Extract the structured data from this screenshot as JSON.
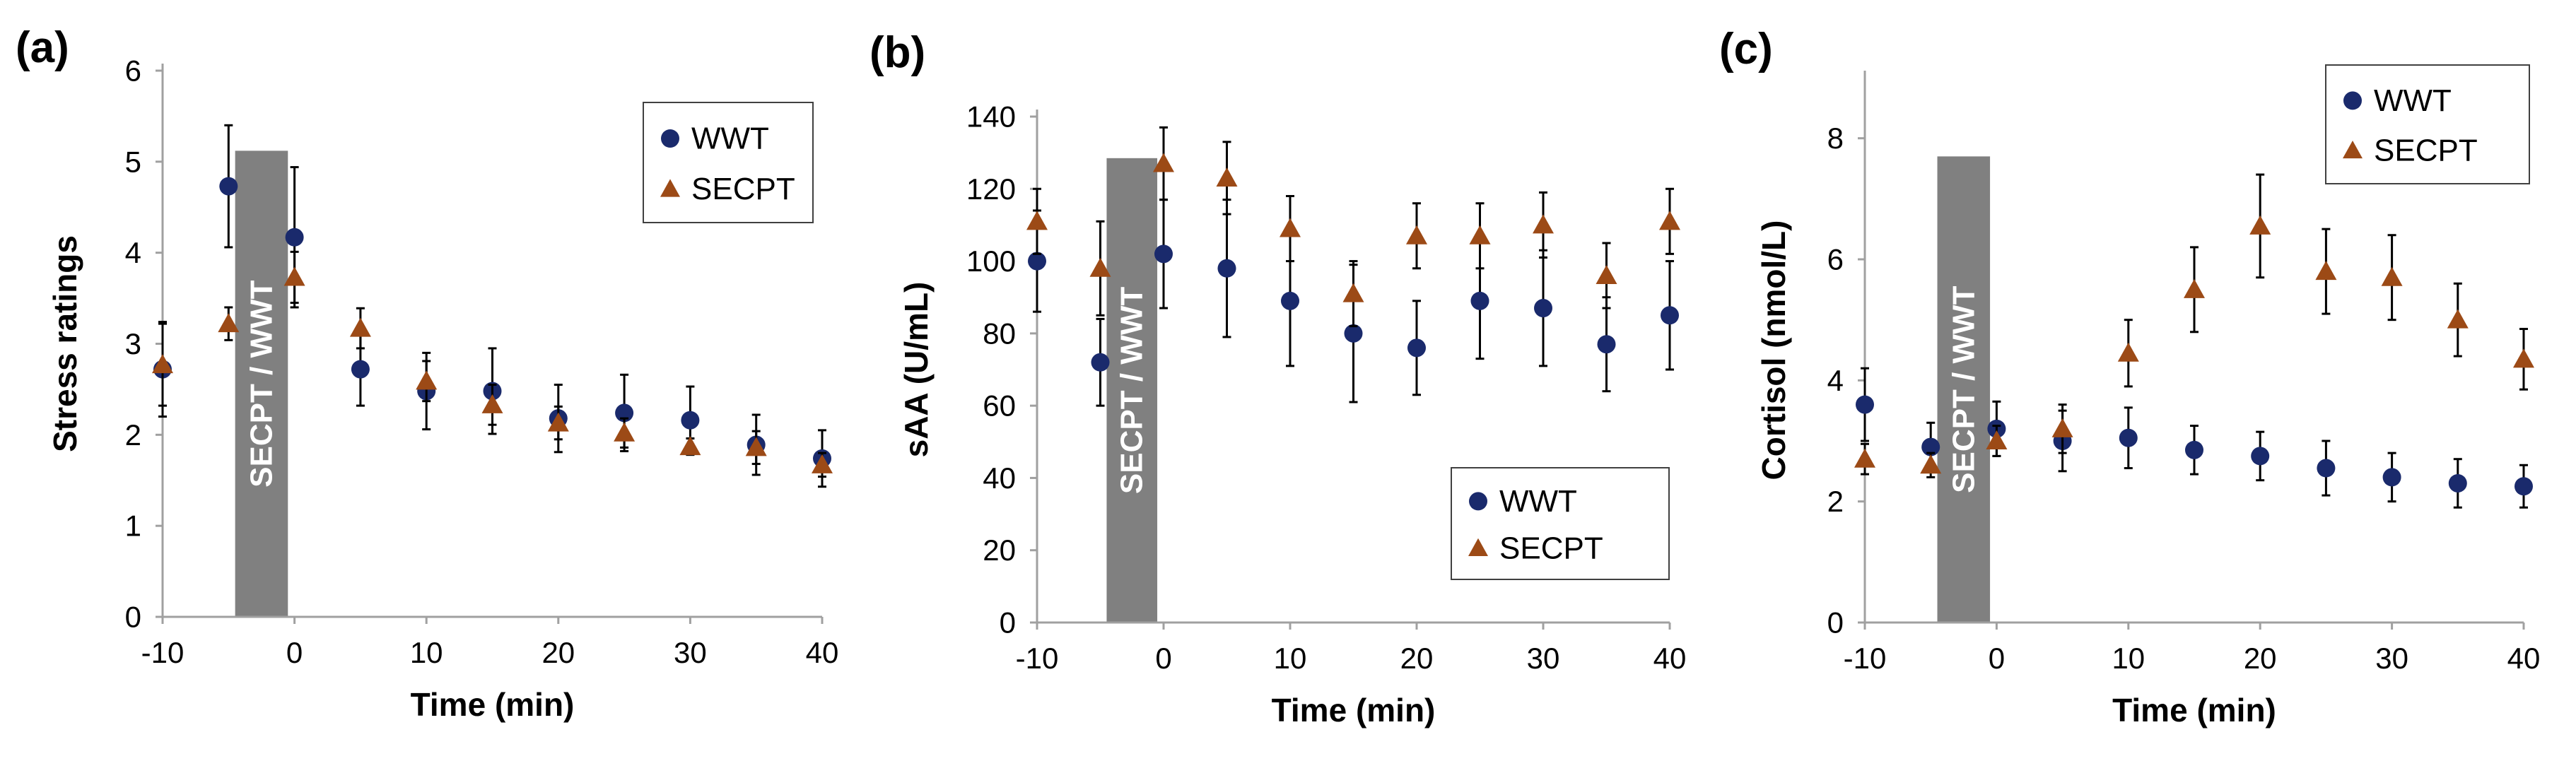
{
  "chart_data": [
    {
      "type": "scatter",
      "panel_label": "(a)",
      "title": "",
      "xlabel": "Time (min)",
      "ylabel": "Stress ratings",
      "xlim": [
        -10,
        40
      ],
      "ylim": [
        0,
        6
      ],
      "x_ticks": [
        -10,
        0,
        10,
        20,
        30,
        40
      ],
      "y_ticks": [
        0,
        1,
        2,
        3,
        4,
        5,
        6
      ],
      "shaded_bar": {
        "label": "SECPT / WWT",
        "x_start": -4.5,
        "x_end": -0.5,
        "y_top": 5.12
      },
      "legend_position": "top-right",
      "series": [
        {
          "name": "WWT",
          "marker": "circle",
          "color": "#1a2a6c",
          "x": [
            -10,
            -5,
            0,
            5,
            10,
            15,
            20,
            25,
            30,
            35,
            40
          ],
          "values": [
            2.72,
            4.73,
            4.17,
            2.72,
            2.48,
            2.48,
            2.18,
            2.24,
            2.16,
            1.89,
            1.74
          ],
          "error": [
            0.52,
            0.67,
            0.77,
            0.4,
            0.42,
            0.47,
            0.37,
            0.42,
            0.37,
            0.33,
            0.31
          ]
        },
        {
          "name": "SECPT",
          "marker": "triangle",
          "color": "#9c4a16",
          "x": [
            -10,
            -5,
            0,
            5,
            10,
            15,
            20,
            25,
            30,
            35,
            40
          ],
          "values": [
            2.77,
            3.22,
            3.73,
            3.17,
            2.59,
            2.33,
            2.13,
            2.02,
            1.87,
            1.86,
            1.67
          ],
          "error": [
            0.45,
            0.18,
            0.28,
            0.22,
            0.22,
            0.22,
            0.18,
            0.16,
            0.09,
            0.18,
            0.13
          ]
        }
      ]
    },
    {
      "type": "scatter",
      "panel_label": "(b)",
      "title": "",
      "xlabel": "Time (min)",
      "ylabel": "sAA (U/mL)",
      "xlim": [
        -10,
        40
      ],
      "ylim": [
        0,
        140
      ],
      "x_ticks": [
        -10,
        0,
        10,
        20,
        30,
        40
      ],
      "y_ticks": [
        0,
        20,
        40,
        60,
        80,
        100,
        120,
        140
      ],
      "shaded_bar": {
        "label": "SECPT / WWT",
        "x_start": -4.5,
        "x_end": -0.5,
        "y_top": 128.5
      },
      "legend_position": "bottom-right",
      "series": [
        {
          "name": "WWT",
          "marker": "circle",
          "color": "#1a2a6c",
          "x": [
            -10,
            -5,
            0,
            5,
            10,
            15,
            20,
            25,
            30,
            35,
            40
          ],
          "values": [
            100,
            72,
            102,
            98,
            89,
            80,
            76,
            89,
            87,
            77,
            85
          ],
          "error": [
            14,
            12,
            15,
            19,
            18,
            19,
            13,
            16,
            16,
            13,
            15
          ]
        },
        {
          "name": "SECPT",
          "marker": "triangle",
          "color": "#9c4a16",
          "x": [
            -10,
            -5,
            0,
            5,
            10,
            15,
            20,
            25,
            30,
            35,
            40
          ],
          "values": [
            111,
            98,
            127,
            123,
            109,
            91,
            107,
            107,
            110,
            96,
            111
          ],
          "error": [
            9,
            13,
            10,
            10,
            9,
            9,
            9,
            9,
            9,
            9,
            9
          ]
        }
      ]
    },
    {
      "type": "scatter",
      "panel_label": "(c)",
      "title": "",
      "xlabel": "Time (min)",
      "ylabel": "Cortisol (nmol/L)",
      "xlim": [
        -10,
        40
      ],
      "ylim": [
        0,
        9
      ],
      "x_ticks": [
        -10,
        0,
        10,
        20,
        30,
        40
      ],
      "y_ticks": [
        0,
        2,
        4,
        6,
        8
      ],
      "shaded_bar": {
        "label": "SECPT / WWT",
        "x_start": -4.5,
        "x_end": -0.5,
        "y_top": 7.7
      },
      "legend_position": "top-right",
      "series": [
        {
          "name": "WWT",
          "marker": "circle",
          "color": "#1a2a6c",
          "x": [
            -10,
            -5,
            0,
            5,
            10,
            15,
            20,
            25,
            30,
            35,
            40
          ],
          "values": [
            3.6,
            2.9,
            3.2,
            3.0,
            3.05,
            2.85,
            2.75,
            2.55,
            2.4,
            2.3,
            2.25
          ],
          "error": [
            0.6,
            0.4,
            0.45,
            0.5,
            0.5,
            0.4,
            0.4,
            0.45,
            0.4,
            0.4,
            0.35
          ]
        },
        {
          "name": "SECPT",
          "marker": "triangle",
          "color": "#9c4a16",
          "x": [
            -10,
            -5,
            0,
            5,
            10,
            15,
            20,
            25,
            30,
            35,
            40
          ],
          "values": [
            2.7,
            2.6,
            3.0,
            3.2,
            4.45,
            5.5,
            6.55,
            5.8,
            5.7,
            5.0,
            4.35
          ],
          "error": [
            0.25,
            0.2,
            0.25,
            0.4,
            0.55,
            0.7,
            0.85,
            0.7,
            0.7,
            0.6,
            0.5
          ]
        }
      ]
    }
  ]
}
